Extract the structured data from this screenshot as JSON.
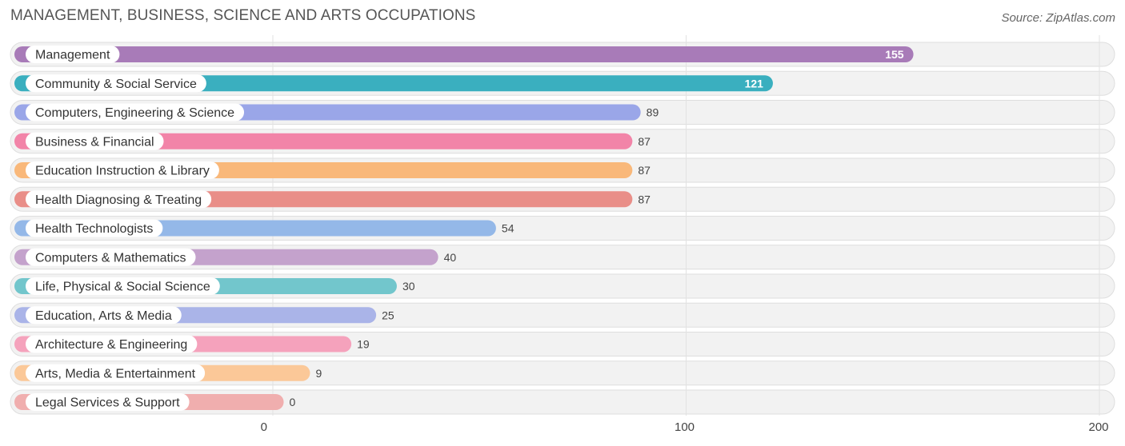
{
  "chart_data": {
    "type": "bar",
    "orientation": "horizontal",
    "title": "MANAGEMENT, BUSINESS, SCIENCE AND ARTS OCCUPATIONS",
    "source": "Source: ZipAtlas.com",
    "categories": [
      "Management",
      "Community & Social Service",
      "Computers, Engineering & Science",
      "Business & Financial",
      "Education Instruction & Library",
      "Health Diagnosing & Treating",
      "Health Technologists",
      "Computers & Mathematics",
      "Life, Physical & Social Science",
      "Education, Arts & Media",
      "Architecture & Engineering",
      "Arts, Media & Entertainment",
      "Legal Services & Support"
    ],
    "values": [
      155,
      121,
      89,
      87,
      87,
      87,
      54,
      40,
      30,
      25,
      19,
      9,
      0
    ],
    "value_labels": [
      "155",
      "121",
      "89",
      "87",
      "87",
      "87",
      "54",
      "40",
      "30",
      "25",
      "19",
      "9",
      "0"
    ],
    "colors": [
      "#a87bb8",
      "#3aafbf",
      "#9aa6e8",
      "#f284a8",
      "#f9b87a",
      "#e98e88",
      "#94b8e8",
      "#c4a2cc",
      "#72c6cc",
      "#aab4e8",
      "#f5a2bc",
      "#fbc898",
      "#f0aeae"
    ],
    "x_ticks": [
      0,
      100,
      200
    ],
    "x_tick_labels": [
      "0",
      "100",
      "200"
    ],
    "xlim": [
      0,
      200
    ],
    "grid": true,
    "legend": "none"
  }
}
